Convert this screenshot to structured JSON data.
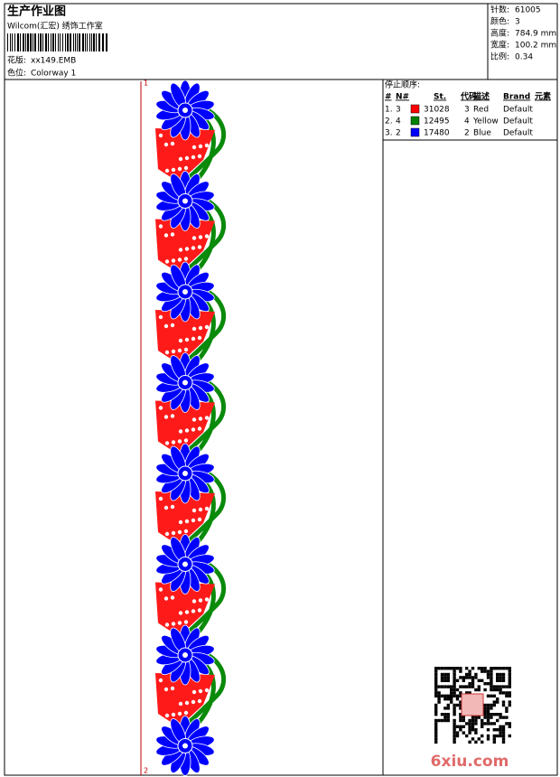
{
  "header": {
    "title": "生产作业图",
    "studio": "Wilcom(汇宏) 绣饰工作室",
    "design_label": "花版:",
    "design": "xx149.EMB",
    "colorway_label": "色位:",
    "colorway": "Colorway 1"
  },
  "stats": [
    [
      "针数:",
      "61005"
    ],
    [
      "颜色:",
      "3"
    ],
    [
      "高度:",
      "784.9 mm"
    ],
    [
      "宽度:",
      "100.2 mm"
    ],
    [
      "比例:",
      "0.34"
    ]
  ],
  "stop_sequence": {
    "title": "停止顺序:",
    "columns": [
      "#",
      "N#",
      "St.",
      "代码",
      "描述",
      "Brand",
      "元素"
    ],
    "rows": [
      {
        "index": "1.",
        "needle": "3",
        "color": "#ff0000",
        "stitches": "31028",
        "code": "3",
        "description": "Red",
        "brand": "Default"
      },
      {
        "index": "2.",
        "needle": "4",
        "color": "#008000",
        "stitches": "12495",
        "code": "4",
        "description": "Yellow",
        "brand": "Default"
      },
      {
        "index": "3.",
        "needle": "2",
        "color": "#0000ff",
        "stitches": "17480",
        "code": "2",
        "description": "Blue",
        "brand": "Default"
      }
    ]
  },
  "markers": {
    "start": "1",
    "end": "2"
  },
  "watermark": "6xiu.com"
}
